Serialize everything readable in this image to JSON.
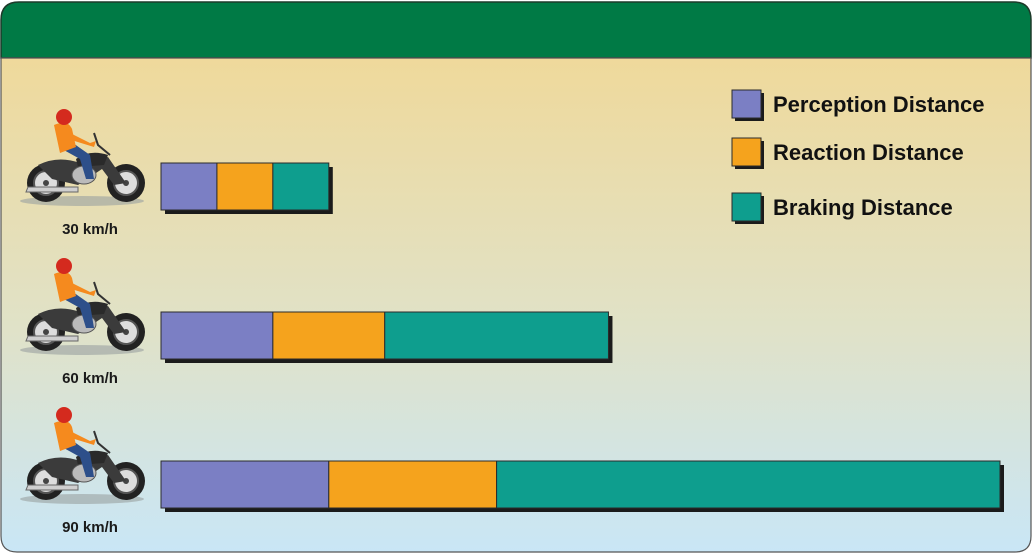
{
  "chart_data": {
    "type": "bar",
    "orientation": "horizontal",
    "stacked": true,
    "categories": [
      "30 km/h",
      "60 km/h",
      "90 km/h"
    ],
    "series": [
      {
        "name": "Perception Distance",
        "color": "#7b7fc4",
        "values": [
          5,
          10,
          15
        ]
      },
      {
        "name": "Reaction Distance",
        "color": "#f5a31d",
        "values": [
          5,
          10,
          15
        ]
      },
      {
        "name": "Braking Distance",
        "color": "#0e9e8e",
        "values": [
          5,
          20,
          45
        ]
      }
    ],
    "legend": "top-right"
  }
}
